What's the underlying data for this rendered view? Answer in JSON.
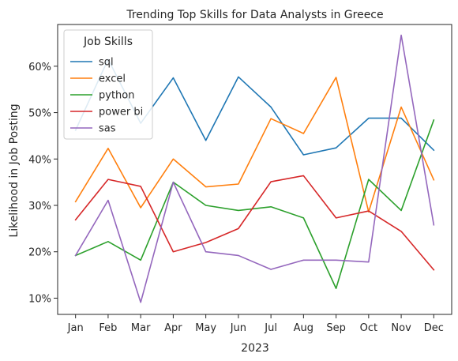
{
  "chart_data": {
    "type": "line",
    "title": "Trending Top Skills for Data Analysts in Greece",
    "xlabel": "2023",
    "ylabel": "Likelihood in Job Posting",
    "categories": [
      "Jan",
      "Feb",
      "Mar",
      "Apr",
      "May",
      "Jun",
      "Jul",
      "Aug",
      "Sep",
      "Oct",
      "Nov",
      "Dec"
    ],
    "ylim": [
      0.065,
      0.69
    ],
    "yticks": [
      0.1,
      0.2,
      0.3,
      0.4,
      0.5,
      0.6
    ],
    "ytick_labels": [
      "10%",
      "20%",
      "30%",
      "40%",
      "50%",
      "60%"
    ],
    "grid": false,
    "legend": {
      "title": "Job Skills",
      "placement": "top-left"
    },
    "series": [
      {
        "name": "sql",
        "color": "#1f77b4",
        "values": [
          0.462,
          0.615,
          0.477,
          0.575,
          0.44,
          0.577,
          0.512,
          0.409,
          0.424,
          0.488,
          0.488,
          0.419
        ]
      },
      {
        "name": "excel",
        "color": "#ff7f0e",
        "values": [
          0.308,
          0.423,
          0.295,
          0.4,
          0.34,
          0.346,
          0.487,
          0.455,
          0.576,
          0.286,
          0.512,
          0.355
        ]
      },
      {
        "name": "python",
        "color": "#2ca02c",
        "values": [
          0.192,
          0.222,
          0.182,
          0.35,
          0.3,
          0.289,
          0.297,
          0.273,
          0.121,
          0.356,
          0.289,
          0.484
        ]
      },
      {
        "name": "power bi",
        "color": "#d62728",
        "values": [
          0.269,
          0.356,
          0.341,
          0.2,
          0.22,
          0.25,
          0.351,
          0.364,
          0.273,
          0.288,
          0.244,
          0.161
        ]
      },
      {
        "name": "sas",
        "color": "#9467bd",
        "values": [
          0.192,
          0.311,
          0.091,
          0.35,
          0.2,
          0.192,
          0.162,
          0.182,
          0.182,
          0.178,
          0.667,
          0.258
        ]
      }
    ]
  }
}
